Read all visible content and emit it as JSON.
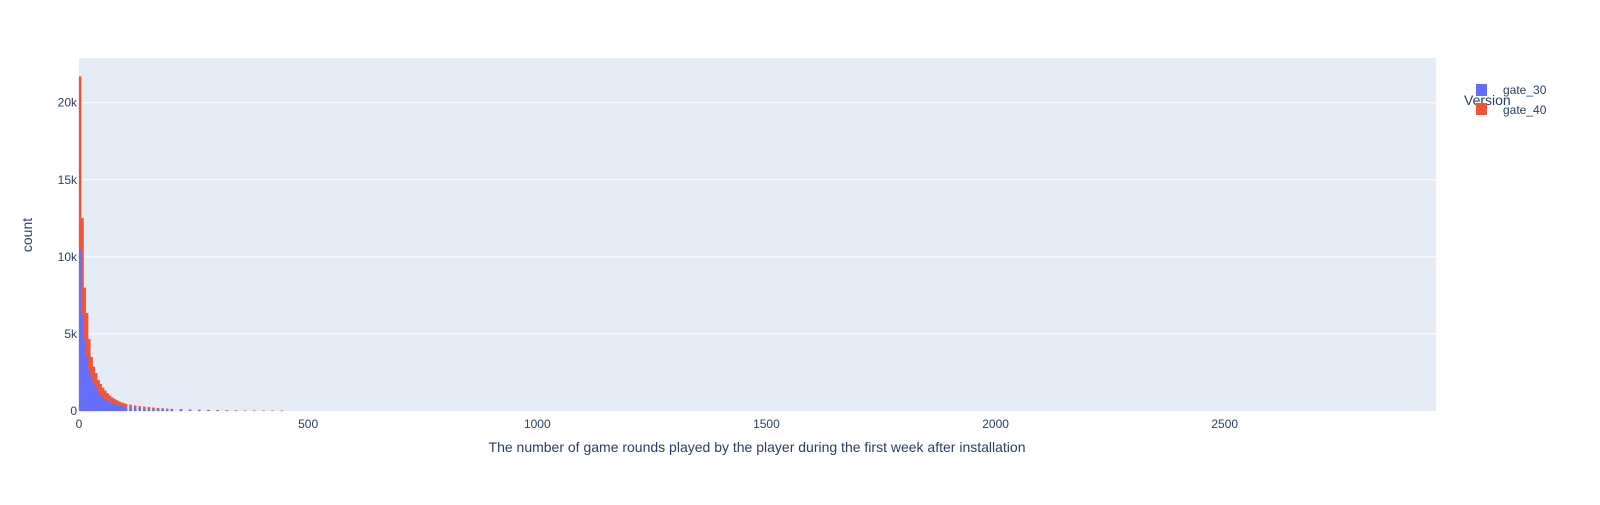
{
  "chart_data": {
    "type": "bar",
    "barmode": "stack",
    "title": "",
    "xlabel": "The number of game rounds played by the player during the first week after installation",
    "ylabel": "count",
    "xlim": [
      0,
      2961
    ],
    "ylim": [
      0,
      22900
    ],
    "x_ticks": [
      0,
      500,
      1000,
      1500,
      2000,
      2500
    ],
    "x_tick_labels": [
      "0",
      "500",
      "1000",
      "1500",
      "2000",
      "2500"
    ],
    "y_ticks": [
      0,
      5000,
      10000,
      15000,
      20000
    ],
    "y_tick_labels": [
      "0",
      "5k",
      "10k",
      "15k",
      "20k"
    ],
    "grid": true,
    "plot_background": "#e5ecf6",
    "legend": {
      "title": "Version",
      "position": "top-right"
    },
    "bin_width": 5,
    "bin_starts": [
      0,
      5,
      10,
      15,
      20,
      25,
      30,
      35,
      40,
      45,
      50,
      55,
      60,
      65,
      70,
      75,
      80,
      85,
      90,
      95,
      100,
      110,
      120,
      130,
      140,
      150,
      160,
      170,
      180,
      190,
      200,
      220,
      240,
      260,
      280,
      300,
      320,
      340,
      360,
      380,
      400,
      420,
      440
    ],
    "series": [
      {
        "name": "gate_30",
        "color": "#636efa",
        "values": [
          10500,
          6200,
          4600,
          3650,
          2700,
          2200,
          1780,
          1500,
          1200,
          1050,
          900,
          800,
          680,
          600,
          520,
          460,
          410,
          370,
          330,
          300,
          270,
          240,
          210,
          190,
          170,
          150,
          130,
          115,
          100,
          90,
          80,
          65,
          55,
          45,
          38,
          30,
          25,
          20,
          16,
          13,
          10,
          8,
          6
        ]
      },
      {
        "name": "gate_40",
        "color": "#ef553b",
        "values": [
          11200,
          6300,
          3400,
          2700,
          1950,
          1300,
          1080,
          950,
          800,
          700,
          600,
          520,
          460,
          400,
          360,
          320,
          280,
          250,
          220,
          200,
          180,
          160,
          140,
          125,
          110,
          100,
          88,
          78,
          68,
          60,
          52,
          44,
          36,
          30,
          25,
          20,
          16,
          13,
          10,
          8,
          6,
          5,
          4
        ]
      }
    ]
  }
}
